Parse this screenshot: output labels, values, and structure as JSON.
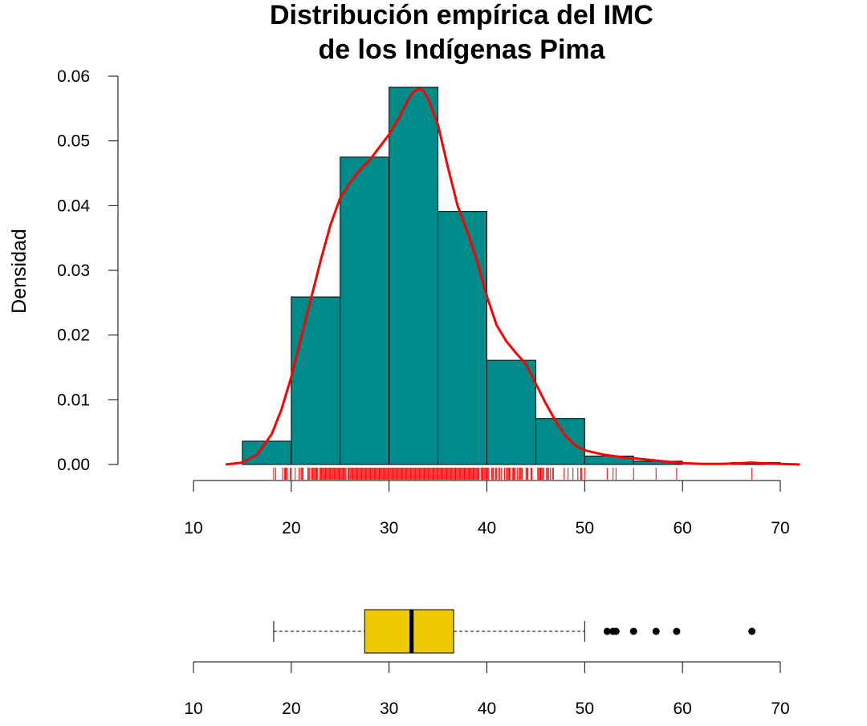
{
  "chart_data": [
    {
      "type": "bar",
      "subtype": "histogram",
      "title_lines": [
        "Distribución empírica del IMC",
        "de los Indígenas Pima"
      ],
      "xlabel": "",
      "ylabel": "Densidad",
      "bins": [
        {
          "start": 15,
          "end": 20,
          "density": 0.0036
        },
        {
          "start": 20,
          "end": 25,
          "density": 0.0259
        },
        {
          "start": 25,
          "end": 30,
          "density": 0.0475
        },
        {
          "start": 30,
          "end": 35,
          "density": 0.0583
        },
        {
          "start": 35,
          "end": 40,
          "density": 0.0391
        },
        {
          "start": 40,
          "end": 45,
          "density": 0.0161
        },
        {
          "start": 45,
          "end": 50,
          "density": 0.0071
        },
        {
          "start": 50,
          "end": 55,
          "density": 0.0013
        },
        {
          "start": 55,
          "end": 60,
          "density": 0.0005
        },
        {
          "start": 60,
          "end": 65,
          "density": 0.0
        },
        {
          "start": 65,
          "end": 70,
          "density": 0.0003
        }
      ],
      "xlim": [
        10,
        70
      ],
      "ylim": [
        0,
        0.06
      ],
      "x_ticks": [
        10,
        20,
        30,
        40,
        50,
        60,
        70
      ],
      "y_ticks": [
        "0.00",
        "0.01",
        "0.02",
        "0.03",
        "0.04",
        "0.05",
        "0.06"
      ],
      "bar_color": "#008B8B",
      "density_curve": {
        "color": "#FF0000",
        "points": [
          [
            13.3,
            0
          ],
          [
            15,
            0.0003
          ],
          [
            16.5,
            0.0015
          ],
          [
            18,
            0.0047
          ],
          [
            19,
            0.0085
          ],
          [
            20,
            0.0135
          ],
          [
            21,
            0.0195
          ],
          [
            22,
            0.0255
          ],
          [
            23,
            0.0315
          ],
          [
            24,
            0.037
          ],
          [
            25,
            0.0412
          ],
          [
            26,
            0.0435
          ],
          [
            27,
            0.0455
          ],
          [
            28,
            0.047
          ],
          [
            29,
            0.049
          ],
          [
            30,
            0.051
          ],
          [
            31,
            0.0535
          ],
          [
            32,
            0.0565
          ],
          [
            32.5,
            0.0576
          ],
          [
            33,
            0.058
          ],
          [
            33.5,
            0.0578
          ],
          [
            34,
            0.0565
          ],
          [
            35,
            0.0525
          ],
          [
            36,
            0.046
          ],
          [
            37,
            0.04
          ],
          [
            38,
            0.036
          ],
          [
            39,
            0.0315
          ],
          [
            40,
            0.026
          ],
          [
            41,
            0.0215
          ],
          [
            42,
            0.019
          ],
          [
            43,
            0.0172
          ],
          [
            44,
            0.0155
          ],
          [
            45,
            0.0125
          ],
          [
            46,
            0.0095
          ],
          [
            47,
            0.0068
          ],
          [
            48,
            0.0045
          ],
          [
            49,
            0.003
          ],
          [
            50,
            0.0022
          ],
          [
            52,
            0.0015
          ],
          [
            54,
            0.0011
          ],
          [
            56,
            0.0008
          ],
          [
            58,
            0.0005
          ],
          [
            60,
            0.0002
          ],
          [
            62,
            0.0001
          ],
          [
            64,
            0.0001
          ],
          [
            66,
            0.0002
          ],
          [
            67,
            0.0003
          ],
          [
            68,
            0.0002
          ],
          [
            70,
            0.0001
          ],
          [
            72,
            0.0
          ]
        ]
      },
      "rug": {
        "color": "#FF0000",
        "values": [
          18.2,
          18.4,
          19.1,
          19.3,
          19.4,
          19.5,
          19.6,
          19.9,
          20.0,
          20.4,
          20.8,
          21.0,
          21.1,
          21.2,
          21.7,
          21.8,
          21.9,
          22.1,
          22.2,
          22.3,
          22.4,
          22.5,
          22.6,
          22.7,
          22.9,
          23.0,
          23.1,
          23.2,
          23.3,
          23.4,
          23.5,
          23.6,
          23.7,
          23.8,
          23.9,
          24.0,
          24.1,
          24.2,
          24.3,
          24.4,
          24.5,
          24.6,
          24.7,
          24.8,
          24.9,
          25.0,
          25.1,
          25.2,
          25.3,
          25.4,
          25.5,
          25.6,
          25.8,
          25.9,
          26.0,
          26.1,
          26.2,
          26.3,
          26.4,
          26.5,
          26.6,
          26.7,
          26.8,
          26.9,
          27.0,
          27.1,
          27.2,
          27.3,
          27.4,
          27.5,
          27.6,
          27.7,
          27.8,
          27.9,
          28.0,
          28.1,
          28.2,
          28.3,
          28.4,
          28.5,
          28.6,
          28.7,
          28.8,
          28.9,
          29.0,
          29.1,
          29.2,
          29.3,
          29.4,
          29.5,
          29.6,
          29.7,
          29.8,
          29.9,
          30.0,
          30.1,
          30.2,
          30.3,
          30.4,
          30.5,
          30.6,
          30.7,
          30.8,
          30.9,
          31.0,
          31.1,
          31.2,
          31.3,
          31.4,
          31.5,
          31.6,
          31.7,
          31.8,
          31.9,
          32.0,
          32.1,
          32.2,
          32.3,
          32.4,
          32.5,
          32.6,
          32.7,
          32.8,
          32.9,
          33.0,
          33.1,
          33.2,
          33.3,
          33.4,
          33.5,
          33.6,
          33.7,
          33.8,
          33.9,
          34.0,
          34.1,
          34.2,
          34.3,
          34.4,
          34.5,
          34.6,
          34.7,
          34.8,
          34.9,
          35.0,
          35.1,
          35.2,
          35.3,
          35.4,
          35.5,
          35.6,
          35.7,
          35.8,
          35.9,
          36.0,
          36.1,
          36.2,
          36.3,
          36.4,
          36.5,
          36.6,
          36.7,
          36.8,
          36.9,
          37.0,
          37.1,
          37.2,
          37.3,
          37.4,
          37.5,
          37.6,
          37.7,
          37.8,
          37.9,
          38.0,
          38.1,
          38.2,
          38.3,
          38.4,
          38.5,
          38.6,
          38.7,
          38.8,
          38.9,
          39.0,
          39.1,
          39.2,
          39.4,
          39.5,
          39.6,
          39.7,
          39.8,
          39.9,
          40.0,
          40.1,
          40.2,
          40.5,
          40.6,
          40.7,
          40.9,
          41.0,
          41.2,
          41.3,
          41.5,
          41.8,
          42.0,
          42.1,
          42.2,
          42.3,
          42.4,
          42.6,
          42.7,
          42.8,
          42.9,
          43.1,
          43.3,
          43.4,
          43.5,
          43.6,
          44.0,
          44.1,
          44.2,
          44.5,
          44.6,
          45.2,
          45.3,
          45.4,
          45.5,
          45.6,
          45.7,
          45.8,
          46.1,
          46.2,
          46.3,
          46.5,
          46.7,
          46.8,
          47.9,
          48.3,
          48.8,
          49.3,
          49.6,
          49.7,
          50.0,
          52.3,
          52.9,
          53.2,
          55.0,
          57.3,
          59.4,
          67.1
        ]
      }
    },
    {
      "type": "boxplot",
      "orientation": "horizontal",
      "xlim": [
        10,
        70
      ],
      "x_ticks": [
        10,
        20,
        30,
        40,
        50,
        60,
        70
      ],
      "whisker_low": 18.2,
      "q1": 27.5,
      "median": 32.3,
      "q3": 36.6,
      "whisker_high": 50.0,
      "outliers": [
        52.3,
        52.9,
        53.2,
        55.0,
        57.3,
        59.4,
        67.1
      ],
      "box_color": "#EEC900"
    }
  ]
}
